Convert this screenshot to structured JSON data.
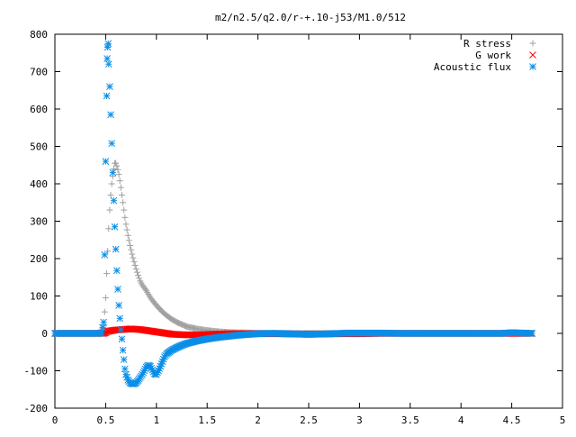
{
  "chart_data": {
    "type": "scatter",
    "title": "m2/n2.5/q2.0/r-+.10-j53/M1.0/512",
    "xlabel": "",
    "ylabel": "",
    "xlim": [
      0,
      5
    ],
    "ylim": [
      -200,
      800
    ],
    "xticks": [
      0,
      0.5,
      1,
      1.5,
      2,
      2.5,
      3,
      3.5,
      4,
      4.5,
      5
    ],
    "yticks": [
      -200,
      -100,
      0,
      100,
      200,
      300,
      400,
      500,
      600,
      700,
      800
    ],
    "xtick_labels": [
      "0",
      "0.5",
      "1",
      "1.5",
      "2",
      "2.5",
      "3",
      "3.5",
      "4",
      "4.5",
      "5"
    ],
    "ytick_labels": [
      "-200",
      "-100",
      "0",
      "100",
      "200",
      "300",
      "400",
      "500",
      "600",
      "700",
      "800"
    ],
    "grid": false,
    "legend_position": "top-right",
    "series": [
      {
        "name": "R stress",
        "marker": "plus",
        "color": "#a0a0a0",
        "points": [
          [
            0.0,
            0
          ],
          [
            0.2,
            0
          ],
          [
            0.4,
            0
          ],
          [
            0.45,
            2
          ],
          [
            0.48,
            20
          ],
          [
            0.5,
            95
          ],
          [
            0.51,
            160
          ],
          [
            0.52,
            220
          ],
          [
            0.53,
            280
          ],
          [
            0.54,
            330
          ],
          [
            0.55,
            370
          ],
          [
            0.56,
            400
          ],
          [
            0.57,
            420
          ],
          [
            0.58,
            440
          ],
          [
            0.59,
            455
          ],
          [
            0.6,
            455
          ],
          [
            0.61,
            448
          ],
          [
            0.62,
            438
          ],
          [
            0.63,
            425
          ],
          [
            0.64,
            408
          ],
          [
            0.65,
            390
          ],
          [
            0.66,
            370
          ],
          [
            0.67,
            350
          ],
          [
            0.68,
            330
          ],
          [
            0.69,
            310
          ],
          [
            0.7,
            292
          ],
          [
            0.72,
            262
          ],
          [
            0.74,
            235
          ],
          [
            0.76,
            212
          ],
          [
            0.78,
            192
          ],
          [
            0.8,
            172
          ],
          [
            0.82,
            155
          ],
          [
            0.84,
            140
          ],
          [
            0.86,
            130
          ],
          [
            0.88,
            122
          ],
          [
            0.9,
            115
          ],
          [
            0.92,
            105
          ],
          [
            0.95,
            92
          ],
          [
            1.0,
            75
          ],
          [
            1.05,
            60
          ],
          [
            1.1,
            48
          ],
          [
            1.15,
            38
          ],
          [
            1.2,
            30
          ],
          [
            1.25,
            24
          ],
          [
            1.3,
            18
          ],
          [
            1.4,
            12
          ],
          [
            1.5,
            8
          ],
          [
            1.6,
            5
          ],
          [
            1.7,
            3
          ],
          [
            1.8,
            2
          ],
          [
            1.9,
            1.5
          ],
          [
            2.0,
            1
          ],
          [
            2.2,
            0.5
          ],
          [
            2.5,
            0.2
          ],
          [
            3.0,
            0.1
          ],
          [
            3.5,
            0.1
          ],
          [
            4.0,
            0.1
          ],
          [
            4.5,
            0.05
          ],
          [
            4.7,
            0
          ]
        ]
      },
      {
        "name": "G work",
        "marker": "cross",
        "color": "#ff0000",
        "points": [
          [
            0.0,
            0
          ],
          [
            0.3,
            0
          ],
          [
            0.48,
            0
          ],
          [
            0.5,
            2
          ],
          [
            0.52,
            5
          ],
          [
            0.55,
            7
          ],
          [
            0.6,
            9
          ],
          [
            0.65,
            10
          ],
          [
            0.7,
            11
          ],
          [
            0.75,
            12
          ],
          [
            0.8,
            11
          ],
          [
            0.85,
            10
          ],
          [
            0.9,
            8
          ],
          [
            0.95,
            6
          ],
          [
            1.0,
            4
          ],
          [
            1.05,
            2
          ],
          [
            1.1,
            0
          ],
          [
            1.15,
            -2
          ],
          [
            1.2,
            -3
          ],
          [
            1.3,
            -4
          ],
          [
            1.4,
            -4
          ],
          [
            1.5,
            -3
          ],
          [
            1.6,
            -2
          ],
          [
            1.7,
            -1
          ],
          [
            1.8,
            -1
          ],
          [
            1.9,
            -1
          ],
          [
            2.0,
            -1
          ],
          [
            2.2,
            -1
          ],
          [
            2.4,
            -2
          ],
          [
            2.6,
            -2
          ],
          [
            2.8,
            -1
          ],
          [
            3.0,
            -1
          ],
          [
            3.2,
            0
          ],
          [
            3.5,
            0
          ],
          [
            4.0,
            0
          ],
          [
            4.5,
            0
          ],
          [
            4.7,
            0
          ]
        ]
      },
      {
        "name": "Acoustic flux",
        "marker": "star",
        "color": "#0a8ee8",
        "points": [
          [
            0.0,
            0
          ],
          [
            0.1,
            0
          ],
          [
            0.2,
            0
          ],
          [
            0.3,
            0
          ],
          [
            0.4,
            0
          ],
          [
            0.44,
            0
          ],
          [
            0.46,
            2
          ],
          [
            0.48,
            30
          ],
          [
            0.49,
            210
          ],
          [
            0.5,
            460
          ],
          [
            0.51,
            635
          ],
          [
            0.515,
            735
          ],
          [
            0.52,
            765
          ],
          [
            0.525,
            775
          ],
          [
            0.53,
            720
          ],
          [
            0.54,
            660
          ],
          [
            0.55,
            585
          ],
          [
            0.56,
            508
          ],
          [
            0.57,
            430
          ],
          [
            0.58,
            355
          ],
          [
            0.59,
            285
          ],
          [
            0.6,
            225
          ],
          [
            0.61,
            168
          ],
          [
            0.62,
            118
          ],
          [
            0.63,
            75
          ],
          [
            0.64,
            40
          ],
          [
            0.65,
            10
          ],
          [
            0.66,
            -15
          ],
          [
            0.67,
            -45
          ],
          [
            0.68,
            -70
          ],
          [
            0.69,
            -95
          ],
          [
            0.7,
            -110
          ],
          [
            0.72,
            -125
          ],
          [
            0.74,
            -132
          ],
          [
            0.76,
            -135
          ],
          [
            0.78,
            -135
          ],
          [
            0.8,
            -132
          ],
          [
            0.82,
            -126
          ],
          [
            0.84,
            -118
          ],
          [
            0.86,
            -110
          ],
          [
            0.88,
            -100
          ],
          [
            0.9,
            -90
          ],
          [
            0.92,
            -85
          ],
          [
            0.94,
            -88
          ],
          [
            0.96,
            -98
          ],
          [
            0.98,
            -108
          ],
          [
            1.0,
            -110
          ],
          [
            1.02,
            -100
          ],
          [
            1.04,
            -88
          ],
          [
            1.06,
            -75
          ],
          [
            1.08,
            -63
          ],
          [
            1.1,
            -55
          ],
          [
            1.15,
            -45
          ],
          [
            1.2,
            -38
          ],
          [
            1.25,
            -32
          ],
          [
            1.3,
            -27
          ],
          [
            1.4,
            -20
          ],
          [
            1.5,
            -15
          ],
          [
            1.6,
            -11
          ],
          [
            1.7,
            -8
          ],
          [
            1.8,
            -5
          ],
          [
            1.9,
            -3
          ],
          [
            2.0,
            -1
          ],
          [
            2.1,
            0
          ],
          [
            2.2,
            0
          ],
          [
            2.3,
            -1
          ],
          [
            2.4,
            -2
          ],
          [
            2.5,
            -3
          ],
          [
            2.6,
            -2
          ],
          [
            2.7,
            -1
          ],
          [
            2.8,
            0
          ],
          [
            2.9,
            1
          ],
          [
            3.0,
            1
          ],
          [
            3.2,
            1
          ],
          [
            3.4,
            0
          ],
          [
            3.6,
            0
          ],
          [
            3.8,
            0
          ],
          [
            4.0,
            0
          ],
          [
            4.2,
            0
          ],
          [
            4.4,
            0
          ],
          [
            4.5,
            2
          ],
          [
            4.6,
            1
          ],
          [
            4.7,
            0
          ]
        ]
      }
    ]
  }
}
